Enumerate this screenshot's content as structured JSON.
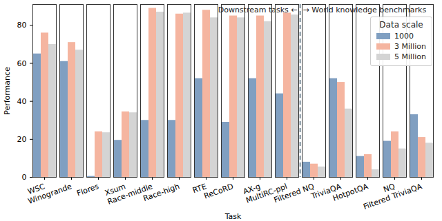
{
  "chart_data": {
    "type": "bar",
    "x_label": "Task",
    "y_label": "Performance",
    "legend_title": "Data scale",
    "annotations": [
      "Downstream tasks ←",
      "→ World knowledge benchmarks"
    ],
    "categories": [
      "WSC",
      "Winogrande",
      "Flores",
      "Xsum",
      "Race-middle",
      "Race-high",
      "RTE",
      "ReCoRD",
      "AX-g",
      "MultiRC-ppl",
      "Filtered NQ",
      "TriviaQA",
      "HotpotQA",
      "NQ",
      "Filtered TriviaQA"
    ],
    "series": [
      {
        "name": "1000",
        "color": "#809fc1",
        "values": [
          65,
          61,
          0.5,
          19.5,
          30,
          30,
          52,
          29,
          52,
          44,
          8,
          52,
          11,
          19,
          33
        ]
      },
      {
        "name": "3 Million",
        "color": "#f5b5a0",
        "values": [
          76,
          71,
          24,
          34.5,
          89,
          86,
          88,
          85,
          85,
          86.5,
          7,
          50,
          12,
          24,
          21
        ]
      },
      {
        "name": "5 Million",
        "color": "#d4d4d4",
        "values": [
          70,
          67,
          23.5,
          34,
          87,
          86.5,
          84,
          84,
          82,
          85.5,
          5.5,
          36,
          4,
          15,
          18
        ]
      }
    ],
    "ylim": [
      0,
      91
    ],
    "yticks": [
      0,
      20,
      40,
      60,
      80
    ],
    "grid": false,
    "legend": "top-right"
  }
}
